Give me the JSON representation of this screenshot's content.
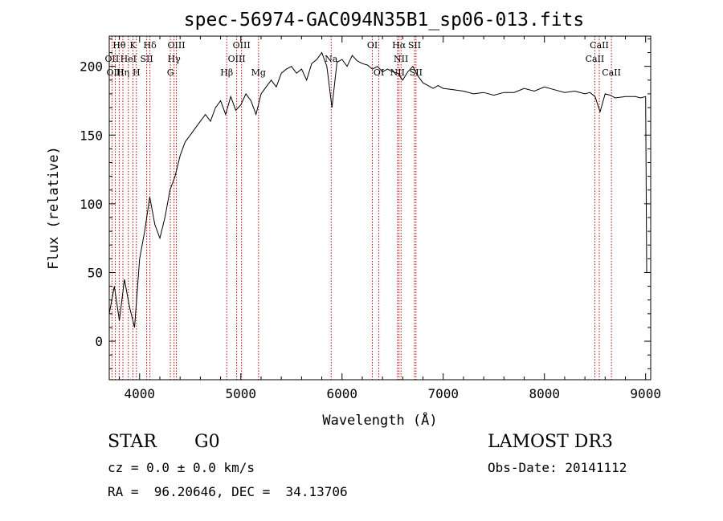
{
  "chart_data": {
    "type": "line",
    "title": "spec-56974-GAC094N35B1_sp06-013.fits",
    "xlabel": "Wavelength (Å)",
    "ylabel": "Flux (relative)",
    "xlim": [
      3700,
      9050
    ],
    "ylim": [
      -28,
      222
    ],
    "x_ticks": [
      4000,
      5000,
      6000,
      7000,
      8000,
      9000
    ],
    "y_ticks": [
      0,
      50,
      100,
      150,
      200
    ],
    "series": [
      {
        "name": "spectrum",
        "color": "#000000",
        "x": [
          3700,
          3750,
          3800,
          3850,
          3900,
          3950,
          4000,
          4050,
          4100,
          4150,
          4200,
          4250,
          4300,
          4350,
          4400,
          4450,
          4500,
          4550,
          4600,
          4650,
          4700,
          4750,
          4800,
          4850,
          4900,
          4950,
          5000,
          5050,
          5100,
          5150,
          5200,
          5250,
          5300,
          5350,
          5400,
          5450,
          5500,
          5550,
          5600,
          5650,
          5700,
          5750,
          5800,
          5850,
          5900,
          5950,
          6000,
          6050,
          6100,
          6150,
          6200,
          6250,
          6300,
          6350,
          6400,
          6450,
          6500,
          6550,
          6600,
          6650,
          6700,
          6750,
          6800,
          6850,
          6900,
          6950,
          7000,
          7100,
          7200,
          7300,
          7400,
          7500,
          7600,
          7700,
          7800,
          7900,
          8000,
          8100,
          8200,
          8300,
          8400,
          8450,
          8500,
          8550,
          8600,
          8650,
          8700,
          8800,
          8900,
          8950,
          9000,
          9010
        ],
        "y": [
          20,
          40,
          15,
          45,
          25,
          10,
          60,
          80,
          105,
          85,
          75,
          90,
          110,
          120,
          135,
          145,
          150,
          155,
          160,
          165,
          160,
          170,
          175,
          165,
          178,
          168,
          172,
          180,
          175,
          165,
          180,
          185,
          190,
          185,
          195,
          198,
          200,
          195,
          198,
          190,
          202,
          205,
          210,
          200,
          170,
          203,
          205,
          200,
          208,
          204,
          202,
          201,
          198,
          200,
          196,
          198,
          196,
          195,
          190,
          196,
          200,
          193,
          188,
          186,
          184,
          186,
          184,
          183,
          182,
          180,
          181,
          179,
          181,
          181,
          184,
          182,
          185,
          183,
          181,
          182,
          180,
          181,
          178,
          167,
          180,
          179,
          177,
          178,
          178,
          177,
          178,
          50
        ]
      }
    ],
    "lines": [
      {
        "label": "Hθ",
        "x": 3798,
        "row": 0
      },
      {
        "label": "K",
        "x": 3934,
        "row": 0
      },
      {
        "label": "Hδ",
        "x": 4102,
        "row": 0
      },
      {
        "label": "OIII",
        "x": 4363,
        "row": 0
      },
      {
        "label": "OIII",
        "x": 5007,
        "row": 0
      },
      {
        "label": "OI",
        "x": 6300,
        "row": 0
      },
      {
        "label": "Hα",
        "x": 6563,
        "row": 0
      },
      {
        "label": "SII",
        "x": 6716,
        "row": 0
      },
      {
        "label": "CaII",
        "x": 8542,
        "row": 0
      },
      {
        "label": "OII",
        "x": 3727,
        "row": 1
      },
      {
        "label": "HeI",
        "x": 3889,
        "row": 1
      },
      {
        "label": "SII",
        "x": 4070,
        "row": 1
      },
      {
        "label": "Hγ",
        "x": 4340,
        "row": 1
      },
      {
        "label": "OIII",
        "x": 4959,
        "row": 1
      },
      {
        "label": "Na",
        "x": 5893,
        "row": 1
      },
      {
        "label": "NII",
        "x": 6583,
        "row": 1
      },
      {
        "label": "CaII",
        "x": 8498,
        "row": 1
      },
      {
        "label": "OIII",
        "x": 3760,
        "row": 2
      },
      {
        "label": "Hη",
        "x": 3835,
        "row": 2
      },
      {
        "label": "H",
        "x": 3968,
        "row": 2
      },
      {
        "label": "G",
        "x": 4304,
        "row": 2
      },
      {
        "label": "Hβ",
        "x": 4861,
        "row": 2
      },
      {
        "label": "Mg",
        "x": 5175,
        "row": 2
      },
      {
        "label": "OI",
        "x": 6364,
        "row": 2
      },
      {
        "label": "NII",
        "x": 6548,
        "row": 2
      },
      {
        "label": "SII",
        "x": 6731,
        "row": 2
      },
      {
        "label": "CaII",
        "x": 8662,
        "row": 2
      }
    ]
  },
  "info": {
    "object_class": "STAR",
    "subclass": "G0",
    "survey": "LAMOST DR3",
    "cz": "cz = 0.0 ± 0.0 km/s",
    "obs_date": "Obs-Date: 20141112",
    "radec": "RA =  96.20646, DEC =  34.13706"
  }
}
